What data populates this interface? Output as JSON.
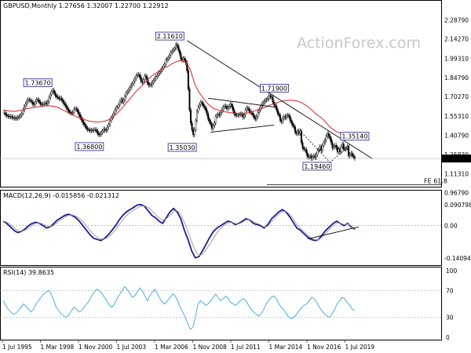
{
  "chart_data": [
    {
      "type": "candlestick",
      "panel": "price",
      "title": "GBPUSD,Monthly  1.27656 1.32007 1.22700 1.22912",
      "watermark": "ActionForex.com",
      "ylim": [
        1.05,
        2.35
      ],
      "y_ticks": [
        "2.28790",
        "2.14270",
        "1.99310",
        "1.84790",
        "1.70270",
        "1.55310",
        "1.40790",
        "1.25830",
        "1.11310",
        "0.96790"
      ],
      "current_price": "1.22912",
      "x_ticks": [
        "1 Jul 1995",
        "1 Mar 1998",
        "1 Nov 2000",
        "1 Jul 2003",
        "1 Mar 2006",
        "1 Nov 2008",
        "1 Jul 2011",
        "1 Mar 2014",
        "1 Nov 2016",
        "1 Jul 2019"
      ],
      "closes": [
        1.58,
        1.575,
        1.565,
        1.555,
        1.552,
        1.548,
        1.55,
        1.545,
        1.538,
        1.54,
        1.535,
        1.538,
        1.545,
        1.55,
        1.56,
        1.575,
        1.6,
        1.625,
        1.645,
        1.665,
        1.68,
        1.675,
        1.67,
        1.66,
        1.642,
        1.645,
        1.665,
        1.68,
        1.675,
        1.66,
        1.645,
        1.64,
        1.645,
        1.648,
        1.655,
        1.645,
        1.665,
        1.695,
        1.72,
        1.74,
        1.75,
        1.73,
        1.71,
        1.7,
        1.695,
        1.685,
        1.69,
        1.675,
        1.665,
        1.645,
        1.635,
        1.615,
        1.6,
        1.585,
        1.58,
        1.575,
        1.582,
        1.605,
        1.61,
        1.605,
        1.585,
        1.565,
        1.545,
        1.525,
        1.505,
        1.49,
        1.475,
        1.46,
        1.45,
        1.448,
        1.442,
        1.445,
        1.445,
        1.45,
        1.45,
        1.44,
        1.42,
        1.41,
        1.415,
        1.428,
        1.44,
        1.455,
        1.445,
        1.448,
        1.47,
        1.49,
        1.52,
        1.54,
        1.555,
        1.575,
        1.6,
        1.62,
        1.62,
        1.64,
        1.665,
        1.68,
        1.66,
        1.675,
        1.705,
        1.73,
        1.74,
        1.755,
        1.77,
        1.79,
        1.8,
        1.82,
        1.84,
        1.86,
        1.87,
        1.87,
        1.85,
        1.82,
        1.81,
        1.83,
        1.86,
        1.85,
        1.81,
        1.79,
        1.795,
        1.79,
        1.81,
        1.825,
        1.84,
        1.855,
        1.865,
        1.88,
        1.89,
        1.905,
        1.92,
        1.935,
        1.95,
        1.98,
        1.99,
        2.0,
        2.02,
        2.04,
        2.05,
        2.06,
        2.07,
        2.1,
        2.09,
        2.06,
        2.03,
        1.99,
        1.98,
        1.995,
        1.98,
        1.96,
        1.9,
        1.76,
        1.6,
        1.5,
        1.45,
        1.41,
        1.45,
        1.52,
        1.59,
        1.62,
        1.64,
        1.66,
        1.65,
        1.63,
        1.62,
        1.6,
        1.57,
        1.53,
        1.51,
        1.49,
        1.46,
        1.48,
        1.5,
        1.55,
        1.56,
        1.57,
        1.56,
        1.58,
        1.6,
        1.62,
        1.63,
        1.625,
        1.61,
        1.62,
        1.63,
        1.645,
        1.625,
        1.595,
        1.57,
        1.56,
        1.56,
        1.56,
        1.565,
        1.57,
        1.565,
        1.545,
        1.56,
        1.6,
        1.615,
        1.61,
        1.59,
        1.58,
        1.575,
        1.56,
        1.54,
        1.53,
        1.55,
        1.58,
        1.6,
        1.62,
        1.64,
        1.655,
        1.665,
        1.675,
        1.68,
        1.69,
        1.71,
        1.7,
        1.7,
        1.66,
        1.64,
        1.63,
        1.6,
        1.57,
        1.56,
        1.52,
        1.51,
        1.535,
        1.55,
        1.54,
        1.555,
        1.56,
        1.55,
        1.52,
        1.5,
        1.48,
        1.47,
        1.43,
        1.42,
        1.44,
        1.42,
        1.44,
        1.35,
        1.31,
        1.3,
        1.3,
        1.27,
        1.24,
        1.24,
        1.25,
        1.23,
        1.24,
        1.25,
        1.235,
        1.26,
        1.29,
        1.3,
        1.32,
        1.29,
        1.33,
        1.35,
        1.37,
        1.4,
        1.42,
        1.4,
        1.38,
        1.35,
        1.31,
        1.32,
        1.33,
        1.315,
        1.28,
        1.3,
        1.28,
        1.32,
        1.34,
        1.3,
        1.3,
        1.31,
        1.32,
        1.25,
        1.26,
        1.27,
        1.25,
        1.24,
        1.229
      ],
      "moving_average": [
        1.6,
        1.595,
        1.59,
        1.59,
        1.595,
        1.6,
        1.61,
        1.615,
        1.62,
        1.625,
        1.63,
        1.632,
        1.632,
        1.628,
        1.62,
        1.605,
        1.59,
        1.575,
        1.56,
        1.545,
        1.535,
        1.525,
        1.515,
        1.51,
        1.508,
        1.51,
        1.515,
        1.525,
        1.545,
        1.57,
        1.6,
        1.635,
        1.67,
        1.705,
        1.74,
        1.77,
        1.8,
        1.83,
        1.86,
        1.88,
        1.9,
        1.92,
        1.93,
        1.95,
        1.965,
        1.975,
        1.98,
        1.96,
        1.9,
        1.8,
        1.74,
        1.7,
        1.66,
        1.63,
        1.61,
        1.6,
        1.59,
        1.585,
        1.58,
        1.575,
        1.575,
        1.57,
        1.575,
        1.58,
        1.59,
        1.6,
        1.61,
        1.62,
        1.635,
        1.645,
        1.655,
        1.665,
        1.67,
        1.675,
        1.675,
        1.67,
        1.66,
        1.645,
        1.625,
        1.6,
        1.57,
        1.55,
        1.525,
        1.49,
        1.46,
        1.44,
        1.425,
        1.42,
        1.415,
        1.41,
        1.4
      ],
      "annotations": [
        {
          "label": "1.73670",
          "date_index": 38,
          "price": 1.7367
        },
        {
          "label": "1.36800",
          "date_index": 77,
          "price": 1.368
        },
        {
          "label": "2.11610",
          "date_index": 148,
          "price": 2.1161
        },
        {
          "label": "1.35030",
          "date_index": 158,
          "price": 1.3503
        },
        {
          "label": "1.71900",
          "date_index": 222,
          "price": 1.719
        },
        {
          "label": "1.19460",
          "date_index": 264,
          "price": 1.1946
        },
        {
          "label": "1.35140",
          "date_index": 288,
          "price": 1.3514
        },
        {
          "label": "FE 61.8",
          "price": 1.03
        }
      ],
      "grid": false
    },
    {
      "type": "line",
      "panel": "macd",
      "title": "MACD(12,26,9) -0.015856 -0.021312",
      "y_ticks": [
        "0.090798",
        "0.00",
        "-0.14094"
      ],
      "ylim": [
        -0.165,
        0.105
      ],
      "series": [
        {
          "role": "macd",
          "color": "#1a1f8c",
          "values": [
            0.02,
            0.01,
            -0.005,
            -0.02,
            -0.03,
            -0.025,
            -0.015,
            0.0,
            0.01,
            0.015,
            0.01,
            0.0,
            -0.01,
            -0.005,
            0.01,
            0.025,
            0.035,
            0.045,
            0.05,
            0.045,
            0.035,
            0.02,
            0.0,
            -0.02,
            -0.04,
            -0.055,
            -0.06,
            -0.065,
            -0.055,
            -0.04,
            -0.02,
            0.0,
            0.025,
            0.045,
            0.06,
            0.07,
            0.08,
            0.09,
            0.092,
            0.085,
            0.065,
            0.045,
            0.035,
            0.02,
            0.01,
            0.035,
            0.06,
            0.075,
            0.06,
            0.03,
            -0.02,
            -0.06,
            -0.11,
            -0.14,
            -0.135,
            -0.11,
            -0.08,
            -0.05,
            -0.025,
            -0.01,
            0.0,
            0.01,
            0.02,
            0.015,
            0.005,
            0.01,
            0.02,
            0.03,
            0.025,
            0.01,
            0.005,
            0.0,
            -0.01,
            0.005,
            0.03,
            0.045,
            0.06,
            0.07,
            0.06,
            0.04,
            0.015,
            -0.01,
            -0.02,
            -0.035,
            -0.05,
            -0.06,
            -0.065,
            -0.06,
            -0.04,
            -0.02,
            -0.005,
            0.01,
            0.02,
            0.01,
            0.0,
            0.01,
            -0.005,
            -0.016
          ]
        },
        {
          "role": "signal",
          "color": "#999999",
          "values": [
            0.02,
            0.015,
            0.005,
            -0.008,
            -0.02,
            -0.025,
            -0.02,
            -0.01,
            0.002,
            0.01,
            0.012,
            0.008,
            0.0,
            -0.005,
            0.002,
            0.015,
            0.027,
            0.037,
            0.045,
            0.047,
            0.042,
            0.032,
            0.017,
            -0.002,
            -0.02,
            -0.038,
            -0.05,
            -0.058,
            -0.058,
            -0.05,
            -0.035,
            -0.017,
            0.005,
            0.025,
            0.043,
            0.057,
            0.068,
            0.078,
            0.085,
            0.087,
            0.08,
            0.065,
            0.05,
            0.035,
            0.023,
            0.03,
            0.045,
            0.063,
            0.065,
            0.05,
            0.015,
            -0.025,
            -0.07,
            -0.11,
            -0.13,
            -0.125,
            -0.105,
            -0.08,
            -0.055,
            -0.03,
            -0.012,
            0.002,
            0.012,
            0.015,
            0.01,
            0.008,
            0.015,
            0.025,
            0.027,
            0.018,
            0.01,
            0.004,
            -0.006,
            -0.002,
            0.018,
            0.035,
            0.05,
            0.062,
            0.063,
            0.05,
            0.03,
            0.005,
            -0.012,
            -0.027,
            -0.042,
            -0.054,
            -0.061,
            -0.061,
            -0.05,
            -0.033,
            -0.015,
            0.0,
            0.012,
            0.012,
            0.005,
            0.007,
            0.0,
            -0.021
          ]
        }
      ],
      "annotations": [
        "support-line"
      ]
    },
    {
      "type": "line",
      "panel": "rsi",
      "title": "RSI(14) 39.8635",
      "y_ticks": [
        "100",
        "70",
        "30",
        "0"
      ],
      "levels": [
        70,
        30
      ],
      "ylim": [
        0,
        100
      ],
      "series": [
        {
          "role": "rsi",
          "color": "#3ba3e8",
          "values": [
            55,
            48,
            42,
            38,
            35,
            36,
            40,
            45,
            50,
            47,
            42,
            38,
            42,
            50,
            55,
            60,
            65,
            68,
            70,
            65,
            55,
            45,
            40,
            35,
            32,
            30,
            34,
            40,
            45,
            42,
            38,
            40,
            45,
            50,
            55,
            62,
            68,
            72,
            70,
            66,
            60,
            55,
            48,
            45,
            50,
            58,
            64,
            70,
            76,
            72,
            66,
            60,
            62,
            68,
            74,
            70,
            62,
            55,
            62,
            68,
            72,
            65,
            58,
            52,
            50,
            55,
            60,
            65,
            62,
            55,
            45,
            38,
            30,
            20,
            12,
            15,
            30,
            50,
            55,
            52,
            48,
            50,
            55,
            60,
            65,
            60,
            55,
            58,
            62,
            58,
            52,
            50,
            48,
            52,
            56,
            58,
            55,
            48,
            42,
            38,
            35,
            32,
            35,
            42,
            50,
            56,
            60,
            62,
            58,
            50,
            45,
            40,
            35,
            30,
            28,
            30,
            35,
            40,
            45,
            48,
            50,
            55,
            60,
            58,
            52,
            45,
            40,
            35,
            32,
            30,
            35,
            42,
            50,
            55,
            60,
            58,
            52,
            48,
            42,
            40
          ]
        }
      ]
    }
  ]
}
